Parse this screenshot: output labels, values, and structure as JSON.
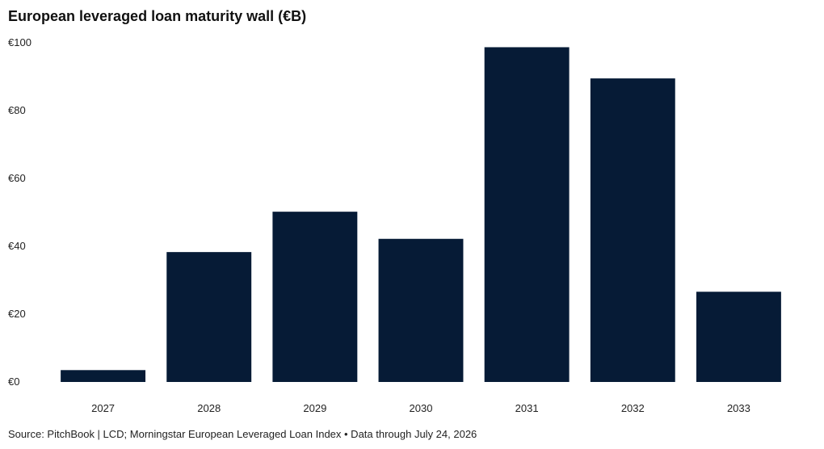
{
  "chart_data": {
    "type": "bar",
    "title": "European leveraged loan maturity wall (€B)",
    "categories": [
      "2027",
      "2028",
      "2029",
      "2030",
      "2031",
      "2032",
      "2033"
    ],
    "values": [
      3.5,
      38.3,
      50.2,
      42.2,
      98.7,
      89.5,
      26.6
    ],
    "ylim": [
      0,
      100
    ],
    "yticks": [
      0,
      20,
      40,
      60,
      80,
      100
    ],
    "ytick_labels": [
      "€0",
      "€20",
      "€40",
      "€60",
      "€80",
      "€100"
    ],
    "grid": false,
    "bar_color": "#061B36"
  },
  "source": "Source: PitchBook | LCD; Morningstar European Leveraged Loan Index • Data through July 24, 2026"
}
